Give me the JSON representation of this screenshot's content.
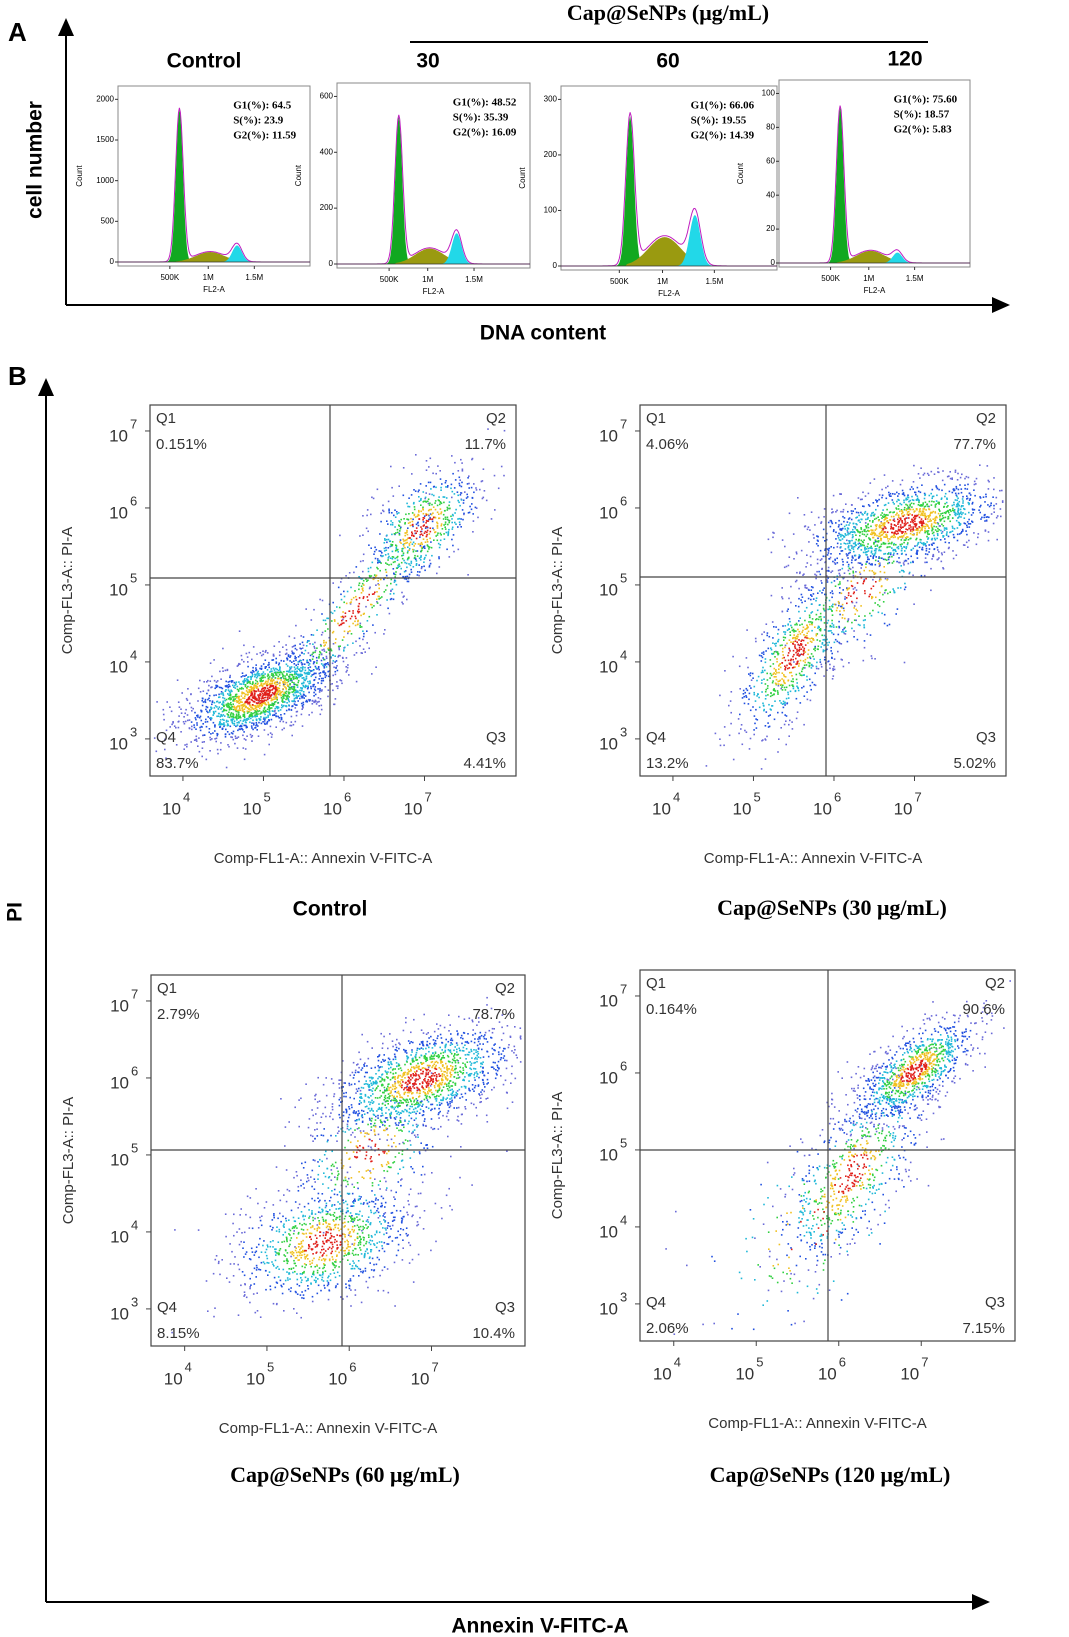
{
  "panel_a": {
    "label": "A",
    "y_axis_label": "cell number",
    "x_axis_label": "DNA content",
    "group_label": "Cap@SeNPs (μg/mL)",
    "plots": [
      {
        "title": "Control",
        "y_label": "Count",
        "x_label": "FL2-A",
        "yticks": [
          "0",
          "500",
          "1000",
          "1500",
          "2000"
        ],
        "xticks": [
          "500K",
          "1M",
          "1.5M"
        ],
        "stats": [
          "G1(%): 64.5",
          "S(%): 23.9",
          "G2(%): 11.59"
        ]
      },
      {
        "title": "30",
        "y_label": "Count",
        "x_label": "FL2-A",
        "yticks": [
          "0",
          "200",
          "400",
          "600"
        ],
        "xticks": [
          "500K",
          "1M",
          "1.5M"
        ],
        "stats": [
          "G1(%): 48.52",
          "S(%): 35.39",
          "G2(%): 16.09"
        ]
      },
      {
        "title": "60",
        "y_label": "Count",
        "x_label": "FL2-A",
        "yticks": [
          "0",
          "100",
          "200",
          "300"
        ],
        "xticks": [
          "500K",
          "1M",
          "1.5M"
        ],
        "stats": [
          "G1(%): 66.06",
          "S(%): 19.55",
          "G2(%): 14.39"
        ]
      },
      {
        "title": "120",
        "y_label": "Count",
        "x_label": "FL2-A",
        "yticks": [
          "0",
          "20",
          "40",
          "60",
          "80",
          "100"
        ],
        "xticks": [
          "500K",
          "1M",
          "1.5M"
        ],
        "stats": [
          "G1(%): 75.60",
          "S(%): 18.57",
          "G2(%): 5.83"
        ]
      }
    ]
  },
  "panel_b": {
    "label": "B",
    "y_axis_label": "PI",
    "x_axis_label": "Annexin V-FITC-A",
    "plots": [
      {
        "caption": "Control",
        "y_label": "Comp-FL3-A:: PI-A",
        "x_label": "Comp-FL1-A:: Annexin V-FITC-A",
        "yticks": [
          {
            "base": "10",
            "power": "7"
          },
          {
            "base": "10",
            "power": "6"
          },
          {
            "base": "10",
            "power": "5"
          },
          {
            "base": "10",
            "power": "4"
          },
          {
            "base": "10",
            "power": "3"
          }
        ],
        "xticks": [
          {
            "base": "10",
            "power": "4"
          },
          {
            "base": "10",
            "power": "5"
          },
          {
            "base": "10",
            "power": "6"
          },
          {
            "base": "10",
            "power": "7"
          }
        ],
        "quadrants": [
          {
            "name": "Q1",
            "value": "0.151%"
          },
          {
            "name": "Q2",
            "value": "11.7%"
          },
          {
            "name": "Q3",
            "value": "4.41%"
          },
          {
            "name": "Q4",
            "value": "83.7%"
          }
        ]
      },
      {
        "caption": "Cap@SeNPs (30 μg/mL)",
        "y_label": "Comp-FL3-A:: PI-A",
        "x_label": "Comp-FL1-A:: Annexin V-FITC-A",
        "yticks": [
          {
            "base": "10",
            "power": "7"
          },
          {
            "base": "10",
            "power": "6"
          },
          {
            "base": "10",
            "power": "5"
          },
          {
            "base": "10",
            "power": "4"
          },
          {
            "base": "10",
            "power": "3"
          }
        ],
        "xticks": [
          {
            "base": "10",
            "power": "4"
          },
          {
            "base": "10",
            "power": "5"
          },
          {
            "base": "10",
            "power": "6"
          },
          {
            "base": "10",
            "power": "7"
          }
        ],
        "quadrants": [
          {
            "name": "Q1",
            "value": "4.06%"
          },
          {
            "name": "Q2",
            "value": "77.7%"
          },
          {
            "name": "Q3",
            "value": "5.02%"
          },
          {
            "name": "Q4",
            "value": "13.2%"
          }
        ]
      },
      {
        "caption": "Cap@SeNPs (60 μg/mL)",
        "y_label": "Comp-FL3-A:: PI-A",
        "x_label": "Comp-FL1-A:: Annexin V-FITC-A",
        "yticks": [
          {
            "base": "10",
            "power": "7"
          },
          {
            "base": "10",
            "power": "6"
          },
          {
            "base": "10",
            "power": "5"
          },
          {
            "base": "10",
            "power": "4"
          },
          {
            "base": "10",
            "power": "3"
          }
        ],
        "xticks": [
          {
            "base": "10",
            "power": "4"
          },
          {
            "base": "10",
            "power": "5"
          },
          {
            "base": "10",
            "power": "6"
          },
          {
            "base": "10",
            "power": "7"
          }
        ],
        "quadrants": [
          {
            "name": "Q1",
            "value": "2.79%"
          },
          {
            "name": "Q2",
            "value": "78.7%"
          },
          {
            "name": "Q3",
            "value": "10.4%"
          },
          {
            "name": "Q4",
            "value": "8.15%"
          }
        ]
      },
      {
        "caption": "Cap@SeNPs (120 μg/mL)",
        "y_label": "Comp-FL3-A:: PI-A",
        "x_label": "Comp-FL1-A:: Annexin V-FITC-A",
        "yticks": [
          {
            "base": "10",
            "power": "7"
          },
          {
            "base": "10",
            "power": "6"
          },
          {
            "base": "10",
            "power": "5"
          },
          {
            "base": "10",
            "power": "4"
          },
          {
            "base": "10",
            "power": "3"
          }
        ],
        "xticks": [
          {
            "base": "10",
            "power": "4"
          },
          {
            "base": "10",
            "power": "5"
          },
          {
            "base": "10",
            "power": "6"
          },
          {
            "base": "10",
            "power": "7"
          }
        ],
        "quadrants": [
          {
            "name": "Q1",
            "value": "0.164%"
          },
          {
            "name": "Q2",
            "value": "90.6%"
          },
          {
            "name": "Q3",
            "value": "7.15%"
          },
          {
            "name": "Q4",
            "value": "2.06%"
          }
        ]
      }
    ]
  }
}
